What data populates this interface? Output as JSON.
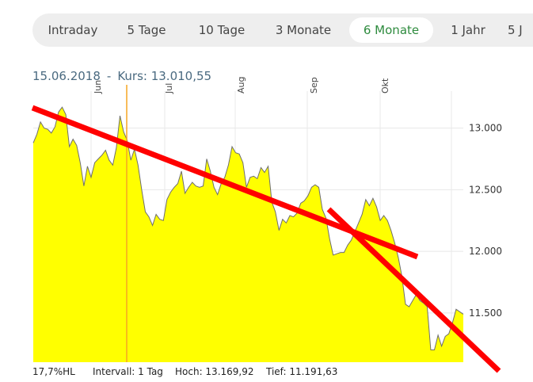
{
  "tabs": [
    {
      "label": "Intraday",
      "active": false
    },
    {
      "label": "5 Tage",
      "active": false
    },
    {
      "label": "10 Tage",
      "active": false
    },
    {
      "label": "3 Monate",
      "active": false
    },
    {
      "label": "6 Monate",
      "active": true
    },
    {
      "label": "1 Jahr",
      "active": false
    },
    {
      "label": "5 J",
      "active": false
    }
  ],
  "quote": {
    "date": "15.06.2018",
    "separator": "-",
    "price_label": "Kurs: 13.010,55"
  },
  "footer": {
    "range": "17,7%HL",
    "interval": "Intervall: 1 Tag",
    "high": "Hoch:  13.169,92",
    "low": "Tief:  11.191,63"
  },
  "colors": {
    "area_fill": "#ffff00",
    "area_stroke": "#6e6e6e",
    "trendline": "#ff0000",
    "cursor_line": "#f5a623",
    "active_tab": "#2e8b3e"
  },
  "chart_data": {
    "type": "area",
    "y_axis": {
      "min": 11100,
      "max": 13300,
      "ticks": [
        13000,
        12500,
        12000,
        11500
      ],
      "tick_labels": [
        "13.000",
        "12.500",
        "12.000",
        "11.500"
      ],
      "position": "right"
    },
    "x_axis": {
      "month_labels": [
        "Jun",
        "Jul",
        "Aug",
        "Sep",
        "Okt"
      ]
    },
    "grid": true,
    "series": [
      {
        "values": [
          12880,
          12950,
          13050,
          13000,
          12990,
          12960,
          13010,
          13130,
          13170,
          13110,
          12850,
          12910,
          12860,
          12720,
          12530,
          12690,
          12600,
          12720,
          12750,
          12780,
          12820,
          12740,
          12700,
          12840,
          13100,
          12970,
          12900,
          12740,
          12830,
          12700,
          12500,
          12320,
          12280,
          12210,
          12300,
          12260,
          12250,
          12420,
          12480,
          12520,
          12550,
          12650,
          12470,
          12520,
          12560,
          12530,
          12520,
          12530,
          12750,
          12650,
          12520,
          12460,
          12550,
          12600,
          12700,
          12850,
          12800,
          12790,
          12720,
          12520,
          12600,
          12610,
          12590,
          12680,
          12640,
          12690,
          12400,
          12320,
          12170,
          12260,
          12230,
          12290,
          12280,
          12310,
          12390,
          12410,
          12450,
          12520,
          12540,
          12520,
          12340,
          12270,
          12100,
          11970,
          11980,
          11990,
          11990,
          12050,
          12090,
          12160,
          12230,
          12300,
          12420,
          12370,
          12430,
          12360,
          12250,
          12290,
          12250,
          12170,
          12070,
          11950,
          11800,
          11570,
          11550,
          11600,
          11650,
          11600,
          11580,
          11550,
          11200,
          11200,
          11320,
          11230,
          11310,
          11330,
          11420,
          11530,
          11510,
          11490
        ]
      }
    ],
    "trendlines": [
      {
        "from": [
          0,
          13110
        ],
        "to": [
          108,
          11920
        ]
      },
      {
        "from": [
          105,
          12270
        ],
        "to": [
          120,
          10990
        ]
      }
    ]
  }
}
